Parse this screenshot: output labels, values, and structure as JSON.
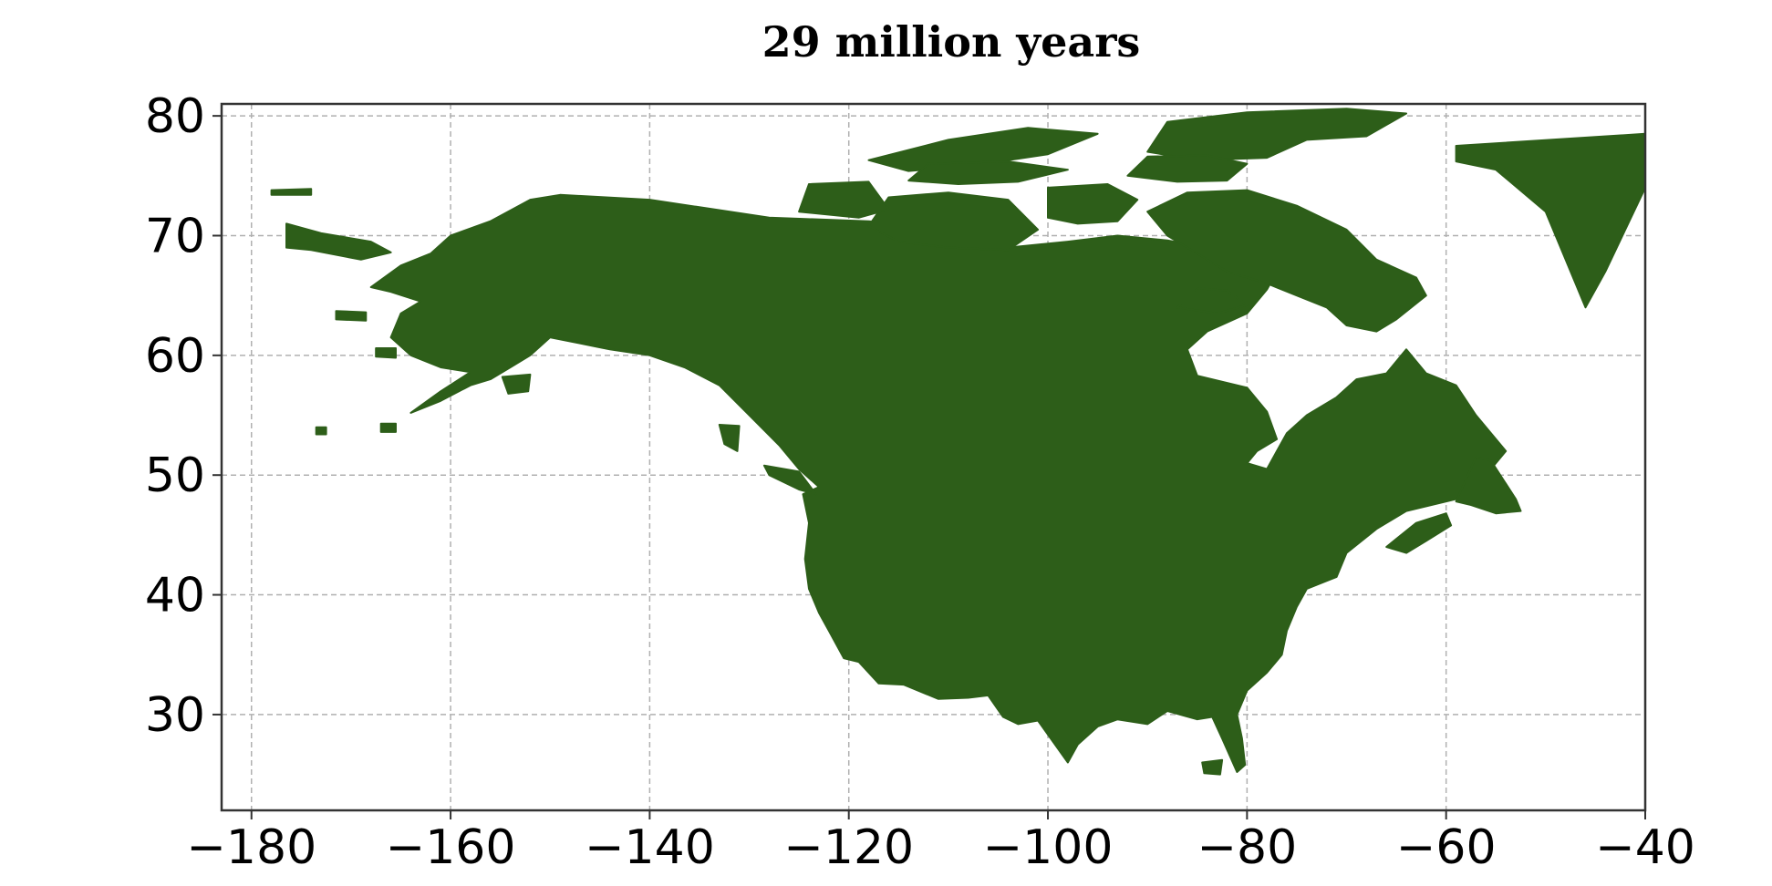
{
  "chart_data": {
    "type": "map",
    "title": "29 million years",
    "xlabel": "",
    "ylabel": "",
    "xlim": [
      -183,
      -40
    ],
    "ylim": [
      22,
      81
    ],
    "x_ticks": [
      -180,
      -160,
      -140,
      -120,
      -100,
      -80,
      -60,
      -40
    ],
    "y_ticks": [
      30,
      40,
      50,
      60,
      70,
      80
    ],
    "x_tick_labels": [
      "−180",
      "−160",
      "−140",
      "−120",
      "−100",
      "−80",
      "−60",
      "−40"
    ],
    "y_tick_labels": [
      "30",
      "40",
      "50",
      "60",
      "70",
      "80"
    ],
    "grid": true,
    "legend": "none",
    "colors": {
      "land": "#2d5e19",
      "grid": "#b0b0b0",
      "axes": "#333333",
      "text": "#000000"
    },
    "regions": [
      {
        "name": "mainland",
        "points": [
          [
            -152,
            73
          ],
          [
            -149,
            73.4
          ],
          [
            -140,
            73
          ],
          [
            -128,
            71.5
          ],
          [
            -118,
            71.2
          ],
          [
            -112,
            70.8
          ],
          [
            -104,
            69
          ],
          [
            -98,
            69.5
          ],
          [
            -93,
            70
          ],
          [
            -88,
            69.6
          ],
          [
            -84,
            69
          ],
          [
            -78,
            68.4
          ],
          [
            -77,
            67
          ],
          [
            -78,
            65.5
          ],
          [
            -80,
            63.5
          ],
          [
            -84,
            62
          ],
          [
            -86,
            60.5
          ],
          [
            -85,
            58.3
          ],
          [
            -80,
            57.3
          ],
          [
            -78,
            55.3
          ],
          [
            -77,
            53
          ],
          [
            -79,
            52
          ],
          [
            -80,
            51
          ],
          [
            -78,
            50.5
          ],
          [
            -76,
            53.5
          ],
          [
            -74,
            55
          ],
          [
            -71,
            56.5
          ],
          [
            -69,
            58
          ],
          [
            -66,
            58.5
          ],
          [
            -64,
            60.5
          ],
          [
            -62,
            58.5
          ],
          [
            -59,
            57.5
          ],
          [
            -57,
            55
          ],
          [
            -54,
            52
          ],
          [
            -56,
            50
          ],
          [
            -59,
            48
          ],
          [
            -64,
            47
          ],
          [
            -67,
            45.5
          ],
          [
            -70,
            43.5
          ],
          [
            -71,
            41.5
          ],
          [
            -74,
            40.5
          ],
          [
            -75,
            39
          ],
          [
            -76,
            37
          ],
          [
            -76.5,
            35
          ],
          [
            -78,
            33.5
          ],
          [
            -80,
            32
          ],
          [
            -81,
            30
          ],
          [
            -80.5,
            28
          ],
          [
            -80.2,
            25.8
          ],
          [
            -81,
            25.2
          ],
          [
            -82.5,
            28
          ],
          [
            -83.5,
            29.8
          ],
          [
            -85,
            29.6
          ],
          [
            -88,
            30.3
          ],
          [
            -90,
            29.2
          ],
          [
            -93,
            29.6
          ],
          [
            -95,
            29
          ],
          [
            -97,
            27.5
          ],
          [
            -98,
            26
          ],
          [
            -101,
            29.5
          ],
          [
            -103,
            29.2
          ],
          [
            -104.5,
            29.8
          ],
          [
            -106,
            31.6
          ],
          [
            -108,
            31.4
          ],
          [
            -111,
            31.3
          ],
          [
            -114.5,
            32.5
          ],
          [
            -117,
            32.6
          ],
          [
            -119,
            34.4
          ],
          [
            -120.5,
            34.7
          ],
          [
            -122,
            37
          ],
          [
            -123,
            38.5
          ],
          [
            -124,
            40.5
          ],
          [
            -124.4,
            43
          ],
          [
            -124,
            46
          ],
          [
            -124.6,
            48.4
          ],
          [
            -123,
            49
          ],
          [
            -125,
            50.5
          ],
          [
            -127,
            52.5
          ],
          [
            -130,
            55
          ],
          [
            -133,
            57.5
          ],
          [
            -136.5,
            59
          ],
          [
            -140,
            60
          ],
          [
            -144,
            60.5
          ],
          [
            -147,
            61
          ],
          [
            -150,
            61.5
          ],
          [
            -152,
            60
          ],
          [
            -154,
            59
          ],
          [
            -156,
            58
          ],
          [
            -158,
            57.5
          ],
          [
            -161,
            56.2
          ],
          [
            -164,
            55.2
          ],
          [
            -161,
            57
          ],
          [
            -158,
            58.6
          ],
          [
            -161,
            59
          ],
          [
            -164,
            60
          ],
          [
            -166,
            61.5
          ],
          [
            -165,
            63.5
          ],
          [
            -163,
            64.5
          ],
          [
            -166,
            65.3
          ],
          [
            -168,
            65.7
          ],
          [
            -165,
            67.5
          ],
          [
            -162,
            68.5
          ],
          [
            -160,
            70
          ],
          [
            -156,
            71.2
          ]
        ]
      },
      {
        "name": "baffin-island",
        "points": [
          [
            -90,
            72
          ],
          [
            -86,
            73.6
          ],
          [
            -80,
            73.8
          ],
          [
            -75,
            72.5
          ],
          [
            -70,
            70.5
          ],
          [
            -67,
            68
          ],
          [
            -63,
            66.5
          ],
          [
            -62,
            65
          ],
          [
            -65,
            63
          ],
          [
            -67,
            62
          ],
          [
            -70,
            62.5
          ],
          [
            -72,
            64
          ],
          [
            -75,
            65
          ],
          [
            -78,
            66
          ],
          [
            -82,
            67
          ],
          [
            -85,
            68.5
          ],
          [
            -88,
            70
          ]
        ]
      },
      {
        "name": "victoria-island",
        "points": [
          [
            -118,
            70.8
          ],
          [
            -116,
            73.2
          ],
          [
            -110,
            73.6
          ],
          [
            -104,
            73
          ],
          [
            -101,
            70.5
          ],
          [
            -104,
            68.8
          ],
          [
            -110,
            69
          ],
          [
            -115,
            69.5
          ]
        ]
      },
      {
        "name": "banks-island",
        "points": [
          [
            -125,
            72
          ],
          [
            -124,
            74.3
          ],
          [
            -118,
            74.5
          ],
          [
            -116,
            72.2
          ],
          [
            -119,
            71.5
          ]
        ]
      },
      {
        "name": "ellesmere-island",
        "points": [
          [
            -90,
            77
          ],
          [
            -88,
            79.5
          ],
          [
            -80,
            80.3
          ],
          [
            -70,
            80.6
          ],
          [
            -64,
            80.2
          ],
          [
            -68,
            78.3
          ],
          [
            -74,
            78
          ],
          [
            -78,
            76.5
          ],
          [
            -85,
            76.3
          ]
        ]
      },
      {
        "name": "devon-island",
        "points": [
          [
            -92,
            75
          ],
          [
            -90,
            76.6
          ],
          [
            -84,
            76.7
          ],
          [
            -80,
            76
          ],
          [
            -82,
            74.6
          ],
          [
            -87,
            74.5
          ]
        ]
      },
      {
        "name": "somerset-prince-of-wales",
        "points": [
          [
            -100,
            71.5
          ],
          [
            -100,
            74
          ],
          [
            -94,
            74.3
          ],
          [
            -91,
            73
          ],
          [
            -93,
            71.2
          ],
          [
            -97,
            71
          ]
        ]
      },
      {
        "name": "queen-elizabeth-islands",
        "points": [
          [
            -118,
            76.3
          ],
          [
            -110,
            78
          ],
          [
            -102,
            79
          ],
          [
            -95,
            78.5
          ],
          [
            -100,
            76.8
          ],
          [
            -108,
            75.8
          ],
          [
            -114,
            75.4
          ]
        ]
      },
      {
        "name": "melville-bathurst",
        "points": [
          [
            -114,
            74.6
          ],
          [
            -112,
            76
          ],
          [
            -104,
            76.2
          ],
          [
            -98,
            75.5
          ],
          [
            -103,
            74.5
          ],
          [
            -109,
            74.3
          ]
        ]
      },
      {
        "name": "southampton-island",
        "points": [
          [
            -87,
            64
          ],
          [
            -85,
            65.6
          ],
          [
            -82,
            65.4
          ],
          [
            -80,
            64.2
          ],
          [
            -83,
            63.5
          ]
        ]
      },
      {
        "name": "greenland",
        "points": [
          [
            -59,
            77.5
          ],
          [
            -40,
            78.5
          ],
          [
            -40,
            74
          ],
          [
            -44,
            67
          ],
          [
            -46,
            64
          ],
          [
            -47,
            66
          ],
          [
            -50,
            72
          ],
          [
            -55,
            75.5
          ],
          [
            -59,
            76.2
          ]
        ]
      },
      {
        "name": "newfoundland",
        "points": [
          [
            -59,
            47.8
          ],
          [
            -57,
            51.5
          ],
          [
            -55.5,
            51.2
          ],
          [
            -53,
            48
          ],
          [
            -52.5,
            47
          ],
          [
            -55,
            46.8
          ],
          [
            -57.5,
            47.5
          ]
        ]
      },
      {
        "name": "nova-scotia",
        "points": [
          [
            -66,
            44
          ],
          [
            -63,
            46
          ],
          [
            -60,
            46.8
          ],
          [
            -59.5,
            45.8
          ],
          [
            -62,
            44.5
          ],
          [
            -64,
            43.5
          ]
        ]
      },
      {
        "name": "vancouver-island",
        "points": [
          [
            -128.5,
            50.8
          ],
          [
            -125,
            50.3
          ],
          [
            -123.3,
            48.4
          ],
          [
            -125,
            48.8
          ],
          [
            -128,
            50
          ]
        ]
      },
      {
        "name": "haida-gwaii",
        "points": [
          [
            -133,
            54.2
          ],
          [
            -131,
            54.1
          ],
          [
            -131.2,
            52
          ],
          [
            -132.5,
            52.6
          ]
        ]
      },
      {
        "name": "chukotka-fragment",
        "points": [
          [
            -176.5,
            71
          ],
          [
            -173,
            70.2
          ],
          [
            -168,
            69.5
          ],
          [
            -166,
            68.6
          ],
          [
            -169,
            68
          ],
          [
            -174,
            68.8
          ],
          [
            -176.5,
            69
          ]
        ]
      },
      {
        "name": "wrangel-island",
        "points": [
          [
            -178,
            73.8
          ],
          [
            -174,
            73.9
          ],
          [
            -174,
            73.4
          ],
          [
            -178,
            73.4
          ]
        ]
      },
      {
        "name": "st-lawrence-island",
        "points": [
          [
            -171.5,
            63.7
          ],
          [
            -168.5,
            63.6
          ],
          [
            -168.5,
            62.9
          ],
          [
            -171.5,
            63
          ]
        ]
      },
      {
        "name": "nunivak-island",
        "points": [
          [
            -167.5,
            60.6
          ],
          [
            -165.5,
            60.6
          ],
          [
            -165.5,
            59.8
          ],
          [
            -167.5,
            59.9
          ]
        ]
      },
      {
        "name": "kodiak-island",
        "points": [
          [
            -154.8,
            58.2
          ],
          [
            -152,
            58.4
          ],
          [
            -152.2,
            57
          ],
          [
            -154.2,
            56.8
          ]
        ]
      },
      {
        "name": "aleutian-fragment-1",
        "points": [
          [
            -173.5,
            54
          ],
          [
            -172.5,
            54
          ],
          [
            -172.5,
            53.4
          ],
          [
            -173.5,
            53.4
          ]
        ]
      },
      {
        "name": "aleutian-fragment-2",
        "points": [
          [
            -167,
            54.3
          ],
          [
            -165.5,
            54.3
          ],
          [
            -165.5,
            53.6
          ],
          [
            -167,
            53.6
          ]
        ]
      },
      {
        "name": "cuba-fragment",
        "points": [
          [
            -84.5,
            26
          ],
          [
            -82.5,
            26.2
          ],
          [
            -82.7,
            25
          ],
          [
            -84.3,
            25.1
          ]
        ]
      }
    ]
  }
}
